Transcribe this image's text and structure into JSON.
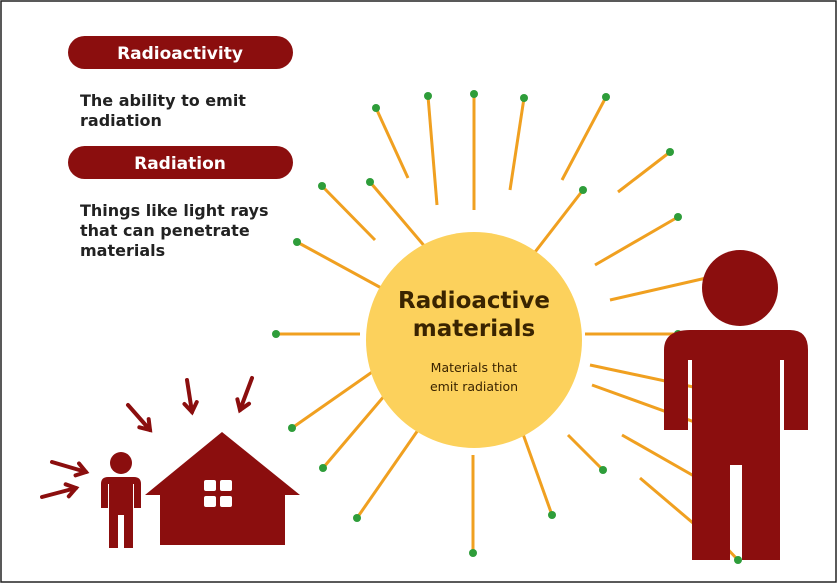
{
  "terms": [
    {
      "title": "Radioactivity",
      "definition": [
        "The ability to emit",
        "radiation"
      ]
    },
    {
      "title": "Radiation",
      "definition": [
        "Things like light rays",
        "that can penetrate",
        "materials"
      ]
    }
  ],
  "center": {
    "title": [
      "Radioactive",
      "materials"
    ],
    "subtitle": [
      "Materials that",
      "emit radiation"
    ]
  }
}
